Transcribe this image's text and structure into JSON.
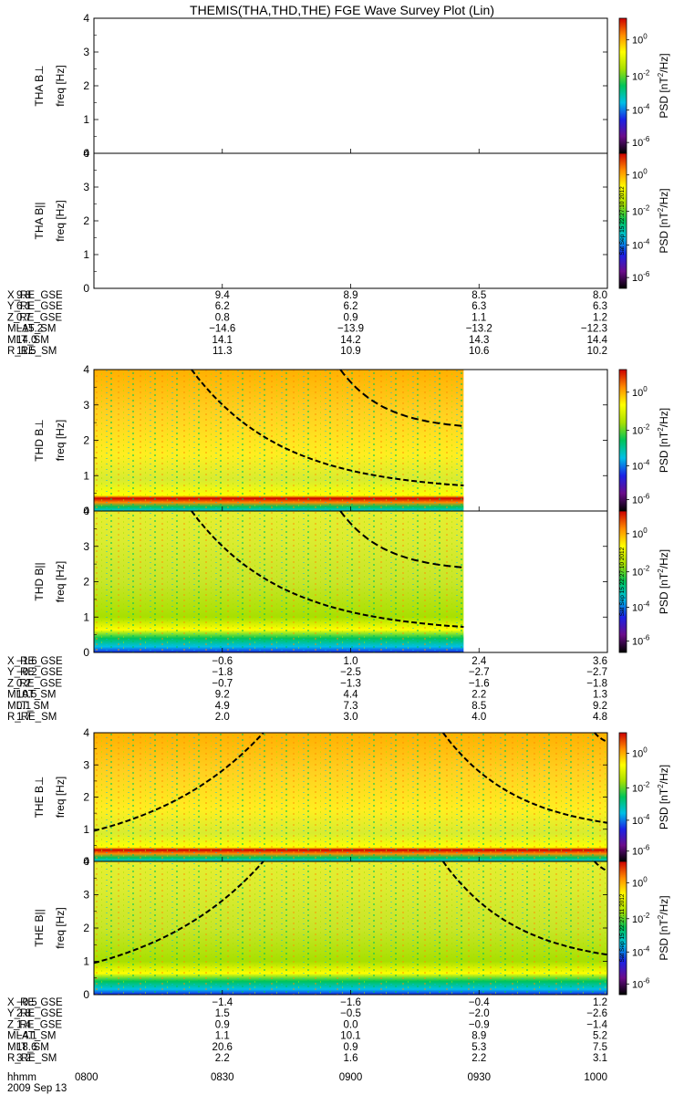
{
  "chart_data": {
    "type": "heatmap",
    "title": "THEMIS(THA,THD,THE) FGE Wave Survey Plot (Lin)",
    "date": "2009 Sep 13",
    "x": [
      "0800",
      "0830",
      "0900",
      "0930",
      "1000"
    ],
    "time_label": "hhmm",
    "ylim": [
      0,
      4
    ],
    "yticks": [
      0,
      1,
      2,
      3,
      4
    ],
    "colorbar": {
      "label": "PSD [nT^2/Hz]",
      "ticks": [
        "10^0",
        "10^-2",
        "10^-4",
        "10^-6"
      ],
      "colors": [
        "#000000",
        "#6a0c8a",
        "#1a22e6",
        "#00bfe6",
        "#00c45a",
        "#a8e000",
        "#ffff00",
        "#ff8c00",
        "#cc0000"
      ]
    },
    "stamps": {
      "a": "Sat Sep 15 22:27:10 2012",
      "e": "Sat Sep 15 22:27:11 2012"
    },
    "probes": [
      {
        "id": "THA",
        "panels": [
          {
            "ylabel": "THA B⊥",
            "unit": "freq [Hz]",
            "data_end_frac": 0
          },
          {
            "ylabel": "THA B||",
            "unit": "freq [Hz]",
            "data_end_frac": 0
          }
        ],
        "ephemeris": [
          {
            "name": "X_RE_GSE",
            "values": [
              "9.8",
              "9.4",
              "8.9",
              "8.5",
              "8.0"
            ]
          },
          {
            "name": "Y_RE_GSE",
            "values": [
              "6.1",
              "6.2",
              "6.2",
              "6.3",
              "6.3"
            ]
          },
          {
            "name": "Z_RE_GSE",
            "values": [
              "0.7",
              "0.8",
              "0.9",
              "1.1",
              "1.2"
            ]
          },
          {
            "name": "MLAT_SM",
            "values": [
              "−15.2",
              "−14.6",
              "−13.9",
              "−13.2",
              "−12.3"
            ]
          },
          {
            "name": "MLT_SM",
            "values": [
              "14.0",
              "14.1",
              "14.2",
              "14.3",
              "14.4"
            ]
          },
          {
            "name": "R_RE_SM",
            "values": [
              "11.5",
              "11.3",
              "10.9",
              "10.6",
              "10.2"
            ]
          }
        ]
      },
      {
        "id": "THD",
        "panels": [
          {
            "ylabel": "THD B⊥",
            "unit": "freq [Hz]",
            "data_end_frac": 0.72
          },
          {
            "ylabel": "THD B||",
            "unit": "freq [Hz]",
            "data_end_frac": 0.72
          }
        ],
        "ephemeris": [
          {
            "name": "X_RE_GSE",
            "values": [
              "−1.6",
              "−0.6",
              "1.0",
              "2.4",
              "3.6"
            ]
          },
          {
            "name": "Y_RE_GSE",
            "values": [
              "−0.2",
              "−1.8",
              "−2.5",
              "−2.7",
              "−2.7"
            ]
          },
          {
            "name": "Z_RE_GSE",
            "values": [
              "0.2",
              "−0.7",
              "−1.3",
              "−1.6",
              "−1.8"
            ]
          },
          {
            "name": "MLAT_SM",
            "values": [
              "10.5",
              "9.2",
              "4.4",
              "2.2",
              "1.3"
            ]
          },
          {
            "name": "MLT_SM",
            "values": [
              "0.1",
              "4.9",
              "7.3",
              "8.5",
              "9.2"
            ]
          },
          {
            "name": "R_RE_SM",
            "values": [
              "1.7",
              "2.0",
              "3.0",
              "4.0",
              "4.8"
            ]
          }
        ]
      },
      {
        "id": "THE",
        "panels": [
          {
            "ylabel": "THE B⊥",
            "unit": "freq [Hz]",
            "data_end_frac": 1
          },
          {
            "ylabel": "THE B||",
            "unit": "freq [Hz]",
            "data_end_frac": 1
          }
        ],
        "ephemeris": [
          {
            "name": "X_RE_GSE",
            "values": [
              "−0.5",
              "−1.4",
              "−1.6",
              "−0.4",
              "1.2"
            ]
          },
          {
            "name": "Y_RE_GSE",
            "values": [
              "2.8",
              "1.5",
              "−0.5",
              "−2.0",
              "−2.6"
            ]
          },
          {
            "name": "Z_RE_GSE",
            "values": [
              "1.4",
              "0.9",
              "0.0",
              "−0.9",
              "−1.4"
            ]
          },
          {
            "name": "MLAT_SM",
            "values": [
              "−4.1",
              "1.1",
              "10.1",
              "8.9",
              "5.2"
            ]
          },
          {
            "name": "MLT_SM",
            "values": [
              "18.6",
              "20.6",
              "0.9",
              "5.3",
              "7.5"
            ]
          },
          {
            "name": "R_RE_SM",
            "values": [
              "3.2",
              "2.2",
              "1.6",
              "2.2",
              "3.1"
            ]
          }
        ]
      }
    ]
  }
}
